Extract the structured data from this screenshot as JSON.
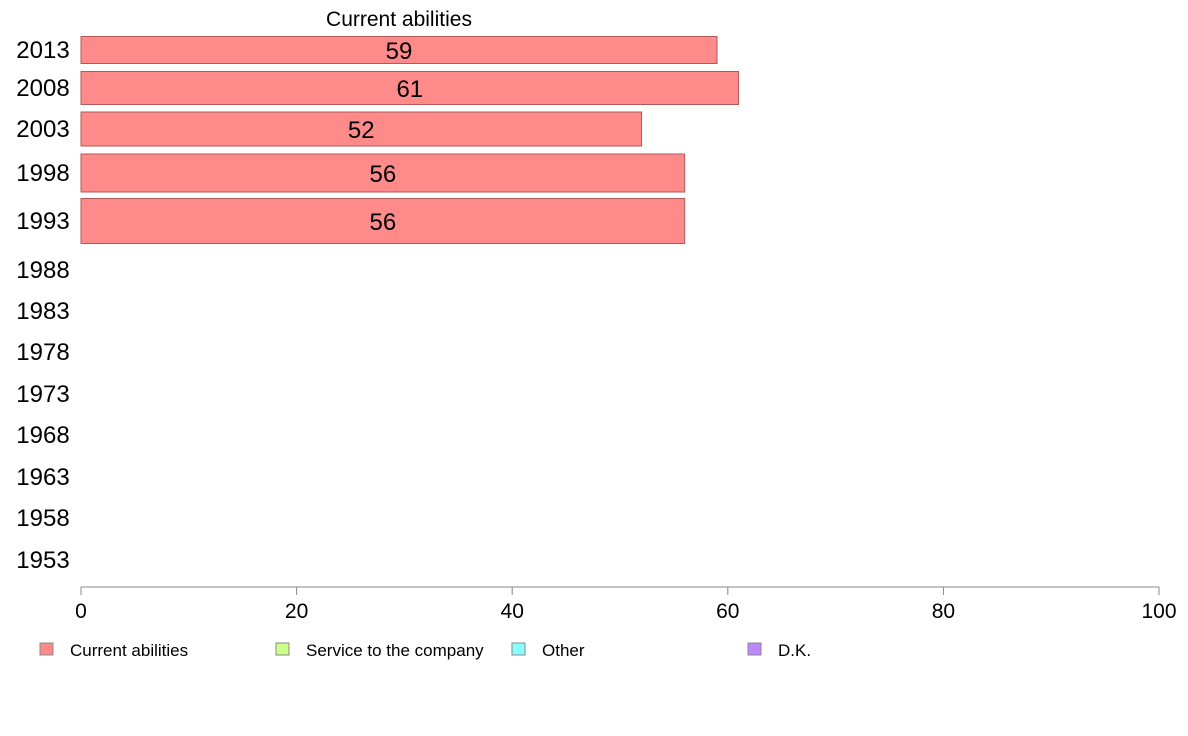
{
  "chart_data": {
    "type": "bar",
    "orientation": "horizontal",
    "title": "Current abilities",
    "xlabel": "",
    "ylabel": "",
    "categories": [
      "2013",
      "2008",
      "2003",
      "1998",
      "1993",
      "1988",
      "1983",
      "1978",
      "1973",
      "1968",
      "1963",
      "1958",
      "1953"
    ],
    "series": [
      {
        "name": "Current abilities",
        "color": "#ff8a8a",
        "values": [
          59,
          61,
          52,
          56,
          56,
          null,
          null,
          null,
          null,
          null,
          null,
          null,
          null
        ]
      }
    ],
    "data_labels": [
      "59",
      "61",
      "52",
      "56",
      "56"
    ],
    "xlim": [
      0,
      100
    ],
    "xticks": [
      0,
      20,
      40,
      60,
      80,
      100
    ],
    "grid": false,
    "legend": {
      "placement": "bottom",
      "items": [
        {
          "label": "Current abilities",
          "color": "#ff8a8a"
        },
        {
          "label": "Service to the company",
          "color": "#ccff88"
        },
        {
          "label": "Other",
          "color": "#88ffff"
        },
        {
          "label": "D.K.",
          "color": "#bb88ff"
        }
      ]
    }
  }
}
